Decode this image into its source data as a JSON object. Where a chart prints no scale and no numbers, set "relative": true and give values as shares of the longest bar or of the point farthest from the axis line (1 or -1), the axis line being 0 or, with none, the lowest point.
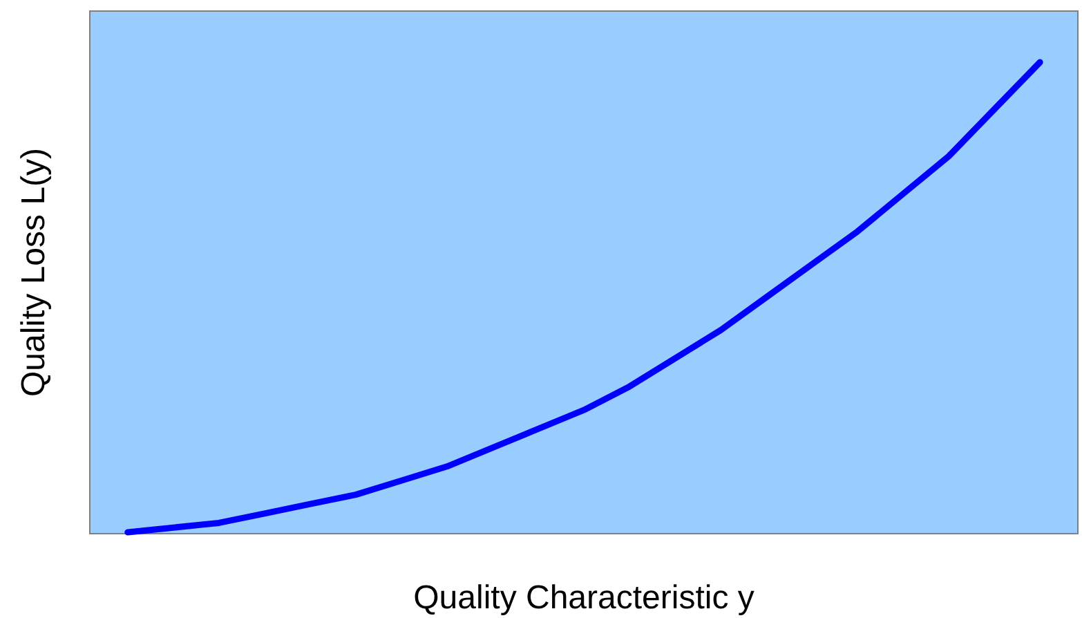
{
  "chart_data": {
    "type": "line",
    "xlabel": "Quality Characteristic y",
    "ylabel": "Quality Loss L(y)",
    "relative": true,
    "marker": "none",
    "line_style": "solid",
    "categories": [
      null,
      null,
      null,
      null,
      null,
      null,
      null,
      null,
      null,
      null,
      null,
      null,
      null,
      null,
      null,
      null,
      null,
      null,
      null,
      null,
      null
    ],
    "series": [
      {
        "color": "#0000ff",
        "values": [
          0,
          0.01,
          0.02,
          0.04,
          0.06,
          0.08,
          0.11,
          0.14,
          0.18,
          0.22,
          0.26,
          0.31,
          0.37,
          0.43,
          0.5,
          0.57,
          0.64,
          0.72,
          0.8,
          0.9,
          1
        ]
      }
    ]
  }
}
